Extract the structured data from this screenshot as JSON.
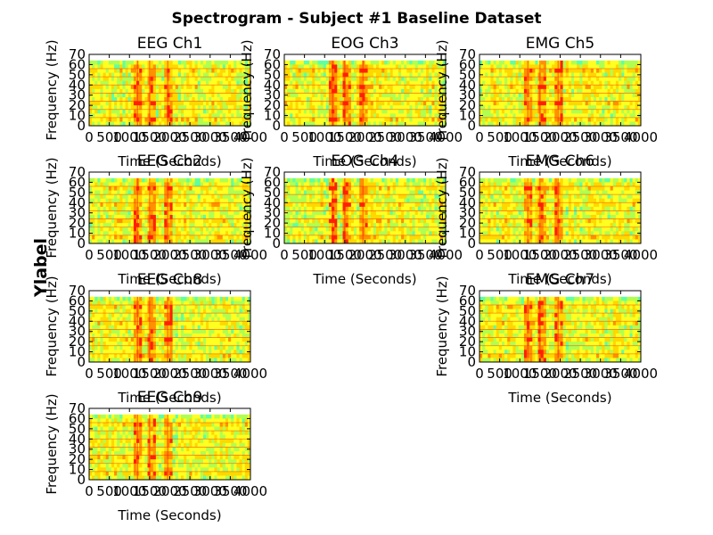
{
  "figure": {
    "suptitle": "Spectrogram - Subject #1 Baseline Dataset",
    "figure_ylabel": "Ylabel"
  },
  "chart_data": [
    {
      "type": "heatmap",
      "title": "EEG Ch1",
      "xlabel": "Time (Seconds)",
      "ylabel": "Frequency (Hz)",
      "xlim": [
        0,
        4000
      ],
      "ylim": [
        0,
        70
      ],
      "xticks": [
        0,
        500,
        1000,
        1500,
        2000,
        2500,
        3000,
        3500,
        4000
      ],
      "xtick_labels": [
        "0",
        "500",
        "1000",
        "1500",
        "2000",
        "2500",
        "3000",
        "3500",
        "4000"
      ],
      "yticks": [
        0,
        10,
        20,
        30,
        40,
        50,
        60,
        70
      ],
      "ytick_labels": [
        "0",
        "10",
        "20",
        "30",
        "40",
        "50",
        "60",
        "70"
      ],
      "data_extent": {
        "time": [
          0,
          4000
        ],
        "frequency": [
          0,
          64
        ]
      },
      "low_frames": [
        1200,
        1500,
        1950
      ],
      "colormap": [
        "#ff2000",
        "#ff9000",
        "#ffd800",
        "#ffff20",
        "#b0ff50",
        "#60ffa0"
      ]
    },
    {
      "type": "heatmap",
      "title": "EOG Ch3",
      "xlabel": "Time (Seconds)",
      "ylabel": "Frequency (Hz)",
      "xlim": [
        0,
        4000
      ],
      "ylim": [
        0,
        70
      ],
      "xticks": [
        0,
        500,
        1000,
        1500,
        2000,
        2500,
        3000,
        3500,
        4000
      ],
      "xtick_labels": [
        "0",
        "500",
        "1000",
        "1500",
        "2000",
        "2500",
        "3000",
        "3500",
        "4000"
      ],
      "yticks": [
        0,
        10,
        20,
        30,
        40,
        50,
        60,
        70
      ],
      "ytick_labels": [
        "0",
        "10",
        "20",
        "30",
        "40",
        "50",
        "60",
        "70"
      ],
      "data_extent": {
        "time": [
          0,
          4000
        ],
        "frequency": [
          0,
          64
        ]
      },
      "low_frames": [
        1200,
        1500,
        1950
      ],
      "colormap": [
        "#ff2000",
        "#ff9000",
        "#ffd800",
        "#ffff20",
        "#b0ff50",
        "#60ffa0"
      ]
    },
    {
      "type": "heatmap",
      "title": "EMG Ch5",
      "xlabel": "Time (Seconds)",
      "ylabel": "Frequency (Hz)",
      "xlim": [
        0,
        4000
      ],
      "ylim": [
        0,
        70
      ],
      "xticks": [
        0,
        500,
        1000,
        1500,
        2000,
        2500,
        3000,
        3500,
        4000
      ],
      "xtick_labels": [
        "0",
        "500",
        "1000",
        "1500",
        "2000",
        "2500",
        "3000",
        "3500",
        "4000"
      ],
      "yticks": [
        0,
        10,
        20,
        30,
        40,
        50,
        60,
        70
      ],
      "ytick_labels": [
        "0",
        "10",
        "20",
        "30",
        "40",
        "50",
        "60",
        "70"
      ],
      "data_extent": {
        "time": [
          0,
          4000
        ],
        "frequency": [
          0,
          64
        ]
      },
      "low_frames": [
        1200,
        1500,
        1950
      ],
      "colormap": [
        "#ff2000",
        "#ff9000",
        "#ffd800",
        "#ffff20",
        "#b0ff50",
        "#60ffa0"
      ]
    },
    {
      "type": "heatmap",
      "title": "EEG Ch2",
      "xlabel": "Time (Seconds)",
      "ylabel": "Frequency (Hz)",
      "xlim": [
        0,
        4000
      ],
      "ylim": [
        0,
        70
      ],
      "xticks": [
        0,
        500,
        1000,
        1500,
        2000,
        2500,
        3000,
        3500,
        4000
      ],
      "xtick_labels": [
        "0",
        "500",
        "1000",
        "1500",
        "2000",
        "2500",
        "3000",
        "3500",
        "4000"
      ],
      "yticks": [
        0,
        10,
        20,
        30,
        40,
        50,
        60,
        70
      ],
      "ytick_labels": [
        "0",
        "10",
        "20",
        "30",
        "40",
        "50",
        "60",
        "70"
      ],
      "data_extent": {
        "time": [
          0,
          4000
        ],
        "frequency": [
          0,
          64
        ]
      },
      "low_frames": [
        1200,
        1500,
        1950
      ],
      "colormap": [
        "#ff2000",
        "#ff9000",
        "#ffd800",
        "#ffff20",
        "#b0ff50",
        "#60ffa0"
      ]
    },
    {
      "type": "heatmap",
      "title": "EOG Ch4",
      "xlabel": "Time (Seconds)",
      "ylabel": "Frequency (Hz)",
      "xlim": [
        0,
        4000
      ],
      "ylim": [
        0,
        70
      ],
      "xticks": [
        0,
        500,
        1000,
        1500,
        2000,
        2500,
        3000,
        3500,
        4000
      ],
      "xtick_labels": [
        "0",
        "500",
        "1000",
        "1500",
        "2000",
        "2500",
        "3000",
        "3500",
        "4000"
      ],
      "yticks": [
        0,
        10,
        20,
        30,
        40,
        50,
        60,
        70
      ],
      "ytick_labels": [
        "0",
        "10",
        "20",
        "30",
        "40",
        "50",
        "60",
        "70"
      ],
      "data_extent": {
        "time": [
          0,
          4000
        ],
        "frequency": [
          0,
          64
        ]
      },
      "low_frames": [
        1200,
        1500,
        1950
      ],
      "colormap": [
        "#ff2000",
        "#ff9000",
        "#ffd800",
        "#ffff20",
        "#b0ff50",
        "#60ffa0"
      ]
    },
    {
      "type": "heatmap",
      "title": "EMG Ch6",
      "xlabel": "Time (Seconds)",
      "ylabel": "Frequency (Hz)",
      "xlim": [
        0,
        4000
      ],
      "ylim": [
        0,
        70
      ],
      "xticks": [
        0,
        500,
        1000,
        1500,
        2000,
        2500,
        3000,
        3500,
        4000
      ],
      "xtick_labels": [
        "0",
        "500",
        "1000",
        "1500",
        "2000",
        "2500",
        "3000",
        "3500",
        "4000"
      ],
      "yticks": [
        0,
        10,
        20,
        30,
        40,
        50,
        60,
        70
      ],
      "ytick_labels": [
        "0",
        "10",
        "20",
        "30",
        "40",
        "50",
        "60",
        "70"
      ],
      "data_extent": {
        "time": [
          0,
          4000
        ],
        "frequency": [
          0,
          64
        ]
      },
      "low_frames": [
        1200,
        1500,
        1950
      ],
      "colormap": [
        "#ff2000",
        "#ff9000",
        "#ffd800",
        "#ffff20",
        "#b0ff50",
        "#60ffa0"
      ]
    },
    {
      "type": "heatmap",
      "title": "EEG Ch8",
      "xlabel": "Time (Seconds)",
      "ylabel": "Frequency (Hz)",
      "xlim": [
        0,
        4000
      ],
      "ylim": [
        0,
        70
      ],
      "xticks": [
        0,
        500,
        1000,
        1500,
        2000,
        2500,
        3000,
        3500,
        4000
      ],
      "xtick_labels": [
        "0",
        "500",
        "1000",
        "1500",
        "2000",
        "2500",
        "3000",
        "3500",
        "4000"
      ],
      "yticks": [
        0,
        10,
        20,
        30,
        40,
        50,
        60,
        70
      ],
      "ytick_labels": [
        "0",
        "10",
        "20",
        "30",
        "40",
        "50",
        "60",
        "70"
      ],
      "data_extent": {
        "time": [
          0,
          4000
        ],
        "frequency": [
          0,
          64
        ]
      },
      "low_frames": [
        1200,
        1500,
        1950
      ],
      "colormap": [
        "#ff2000",
        "#ff9000",
        "#ffd800",
        "#ffff20",
        "#b0ff50",
        "#60ffa0"
      ]
    },
    {
      "type": "heatmap",
      "title": "EMG Ch7",
      "xlabel": "Time (Seconds)",
      "ylabel": "Frequency (Hz)",
      "xlim": [
        0,
        4000
      ],
      "ylim": [
        0,
        70
      ],
      "xticks": [
        0,
        500,
        1000,
        1500,
        2000,
        2500,
        3000,
        3500,
        4000
      ],
      "xtick_labels": [
        "0",
        "500",
        "1000",
        "1500",
        "2000",
        "2500",
        "3000",
        "3500",
        "4000"
      ],
      "yticks": [
        0,
        10,
        20,
        30,
        40,
        50,
        60,
        70
      ],
      "ytick_labels": [
        "0",
        "10",
        "20",
        "30",
        "40",
        "50",
        "60",
        "70"
      ],
      "data_extent": {
        "time": [
          0,
          4000
        ],
        "frequency": [
          0,
          64
        ]
      },
      "low_frames": [
        1200,
        1500,
        1950
      ],
      "colormap": [
        "#ff2000",
        "#ff9000",
        "#ffd800",
        "#ffff20",
        "#b0ff50",
        "#60ffa0"
      ]
    },
    {
      "type": "heatmap",
      "title": "EEG Ch9",
      "xlabel": "Time (Seconds)",
      "ylabel": "Frequency (Hz)",
      "xlim": [
        0,
        4000
      ],
      "ylim": [
        0,
        70
      ],
      "xticks": [
        0,
        500,
        1000,
        1500,
        2000,
        2500,
        3000,
        3500,
        4000
      ],
      "xtick_labels": [
        "0",
        "500",
        "1000",
        "1500",
        "2000",
        "2500",
        "3000",
        "3500",
        "4000"
      ],
      "yticks": [
        0,
        10,
        20,
        30,
        40,
        50,
        60,
        70
      ],
      "ytick_labels": [
        "0",
        "10",
        "20",
        "30",
        "40",
        "50",
        "60",
        "70"
      ],
      "data_extent": {
        "time": [
          0,
          4000
        ],
        "frequency": [
          0,
          64
        ]
      },
      "low_frames": [
        1200,
        1500,
        1950
      ],
      "colormap": [
        "#ff2000",
        "#ff9000",
        "#ffd800",
        "#ffff20",
        "#b0ff50",
        "#60ffa0"
      ]
    }
  ]
}
